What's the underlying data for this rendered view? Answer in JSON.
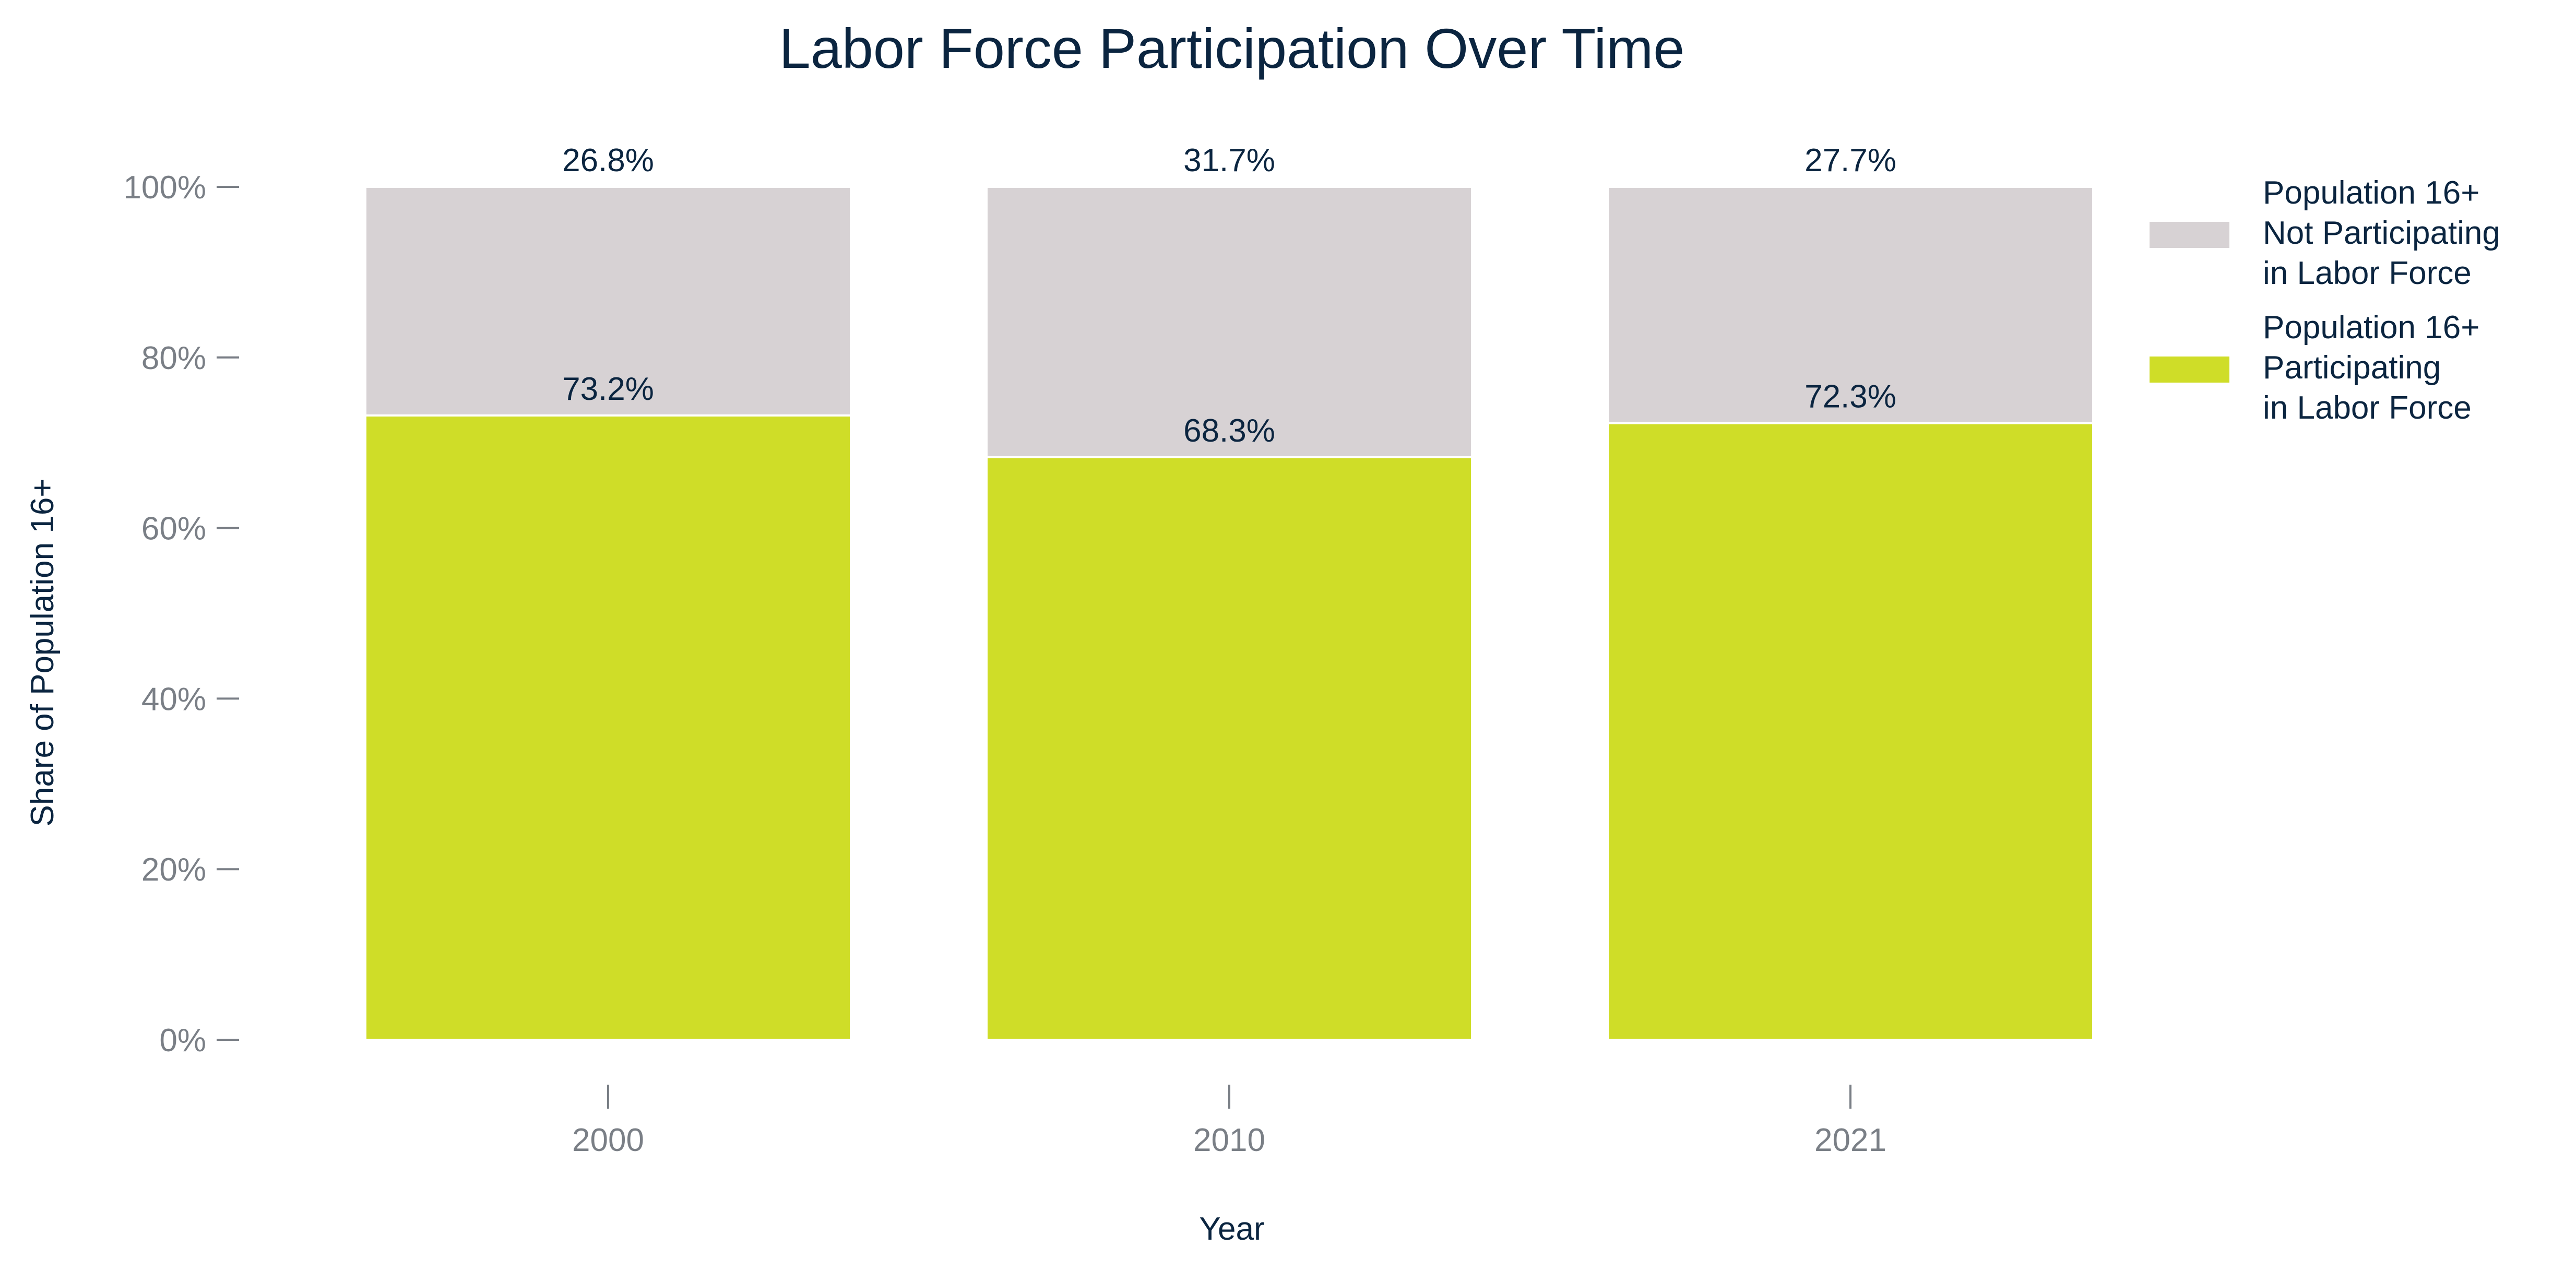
{
  "chart_data": {
    "type": "bar",
    "stacked": true,
    "title": "Labor Force Participation Over Time",
    "xlabel": "Year",
    "ylabel": "Share of Population 16+",
    "categories": [
      "2000",
      "2010",
      "2021"
    ],
    "ylim": [
      0,
      100
    ],
    "yticks": [
      0,
      20,
      40,
      60,
      80,
      100
    ],
    "ytick_labels": [
      "0%",
      "20%",
      "40%",
      "60%",
      "80%",
      "100%"
    ],
    "grid": false,
    "legend_position": "right",
    "series": [
      {
        "name": "Population 16+ Participating in Labor Force",
        "legend_lines": [
          "Population 16+",
          "Participating",
          "in Labor Force"
        ],
        "values": [
          73.2,
          68.3,
          72.3
        ],
        "labels": [
          "73.2%",
          "68.3%",
          "72.3%"
        ],
        "color": "#cfdd28"
      },
      {
        "name": "Population 16+ Not Participating in Labor Force",
        "legend_lines": [
          "Population 16+",
          "Not Participating",
          "in Labor Force"
        ],
        "values": [
          26.8,
          31.7,
          27.7
        ],
        "labels": [
          "26.8%",
          "31.7%",
          "27.7%"
        ],
        "color": "#d7d2d4"
      }
    ]
  }
}
